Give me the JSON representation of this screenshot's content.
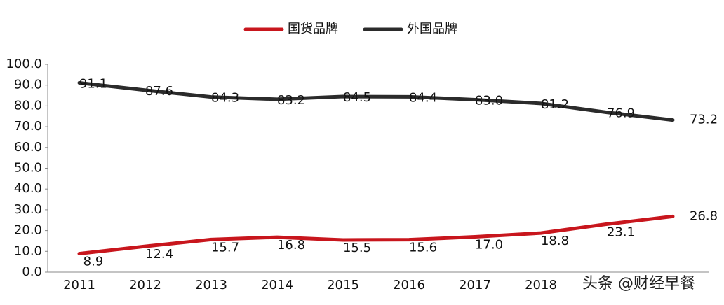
{
  "chart_data": {
    "type": "line",
    "categories": [
      "2011",
      "2012",
      "2013",
      "2014",
      "2015",
      "2016",
      "2017",
      "2018",
      null,
      null
    ],
    "series": [
      {
        "name": "国货品牌",
        "color": "#c8161d",
        "values": [
          8.9,
          12.4,
          15.7,
          16.8,
          15.5,
          15.6,
          17.0,
          18.8,
          23.1,
          26.8
        ],
        "value_labels": [
          "8.9",
          "12.4",
          "15.7",
          "16.8",
          "15.5",
          "15.6",
          "17.0",
          "18.8",
          "23.1",
          "26.8"
        ]
      },
      {
        "name": "外国品牌",
        "color": "#2b2b2b",
        "values": [
          91.1,
          87.6,
          84.3,
          83.2,
          84.5,
          84.4,
          83.0,
          81.2,
          76.9,
          73.2
        ],
        "value_labels": [
          "91.1",
          "87.6",
          "84.3",
          "83.2",
          "84.5",
          "84.4",
          "83.0",
          "81.2",
          "76.9",
          "73.2"
        ]
      }
    ],
    "ylim": [
      0,
      100
    ],
    "yticks": [
      {
        "value": 0,
        "label": "0.0"
      },
      {
        "value": 10,
        "label": "10.0"
      },
      {
        "value": 20,
        "label": "20.0"
      },
      {
        "value": 30,
        "label": "30.0"
      },
      {
        "value": 40,
        "label": "40.0"
      },
      {
        "value": 50,
        "label": "50.0"
      },
      {
        "value": 60,
        "label": "60.0"
      },
      {
        "value": 70,
        "label": "70.0"
      },
      {
        "value": 80,
        "label": "80.0"
      },
      {
        "value": 90,
        "label": "90.0"
      },
      {
        "value": 100,
        "label": "100.0"
      }
    ],
    "legend": "top",
    "watermark": "头条 @财经早餐"
  }
}
